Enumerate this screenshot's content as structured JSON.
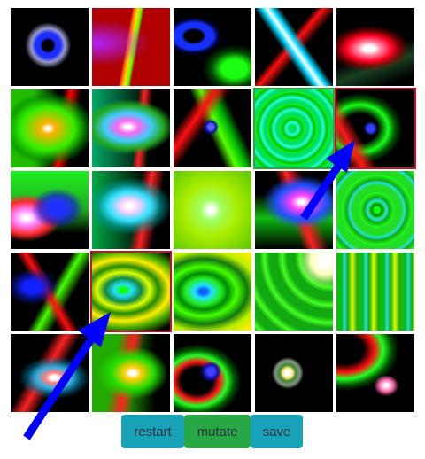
{
  "grid": {
    "rows": 5,
    "columns": 5,
    "selected_tiles": [
      {
        "row": 2,
        "column": 4,
        "outline": "#3aa43a"
      },
      {
        "row": 2,
        "column": 5,
        "outline": "#c8102e"
      },
      {
        "row": 4,
        "column": 2,
        "outline": "#c8102e"
      }
    ]
  },
  "controls": {
    "restart_label": "restart",
    "mutate_label": "mutate",
    "save_label": "save"
  },
  "colors": {
    "restart_button": "#17a2b8",
    "mutate_button": "#28a745",
    "save_button": "#17a2b8",
    "arrow": "#0000ff"
  },
  "annotations": {
    "arrows": [
      "arrow-up-right-icon",
      "arrow-up-right-icon"
    ]
  }
}
